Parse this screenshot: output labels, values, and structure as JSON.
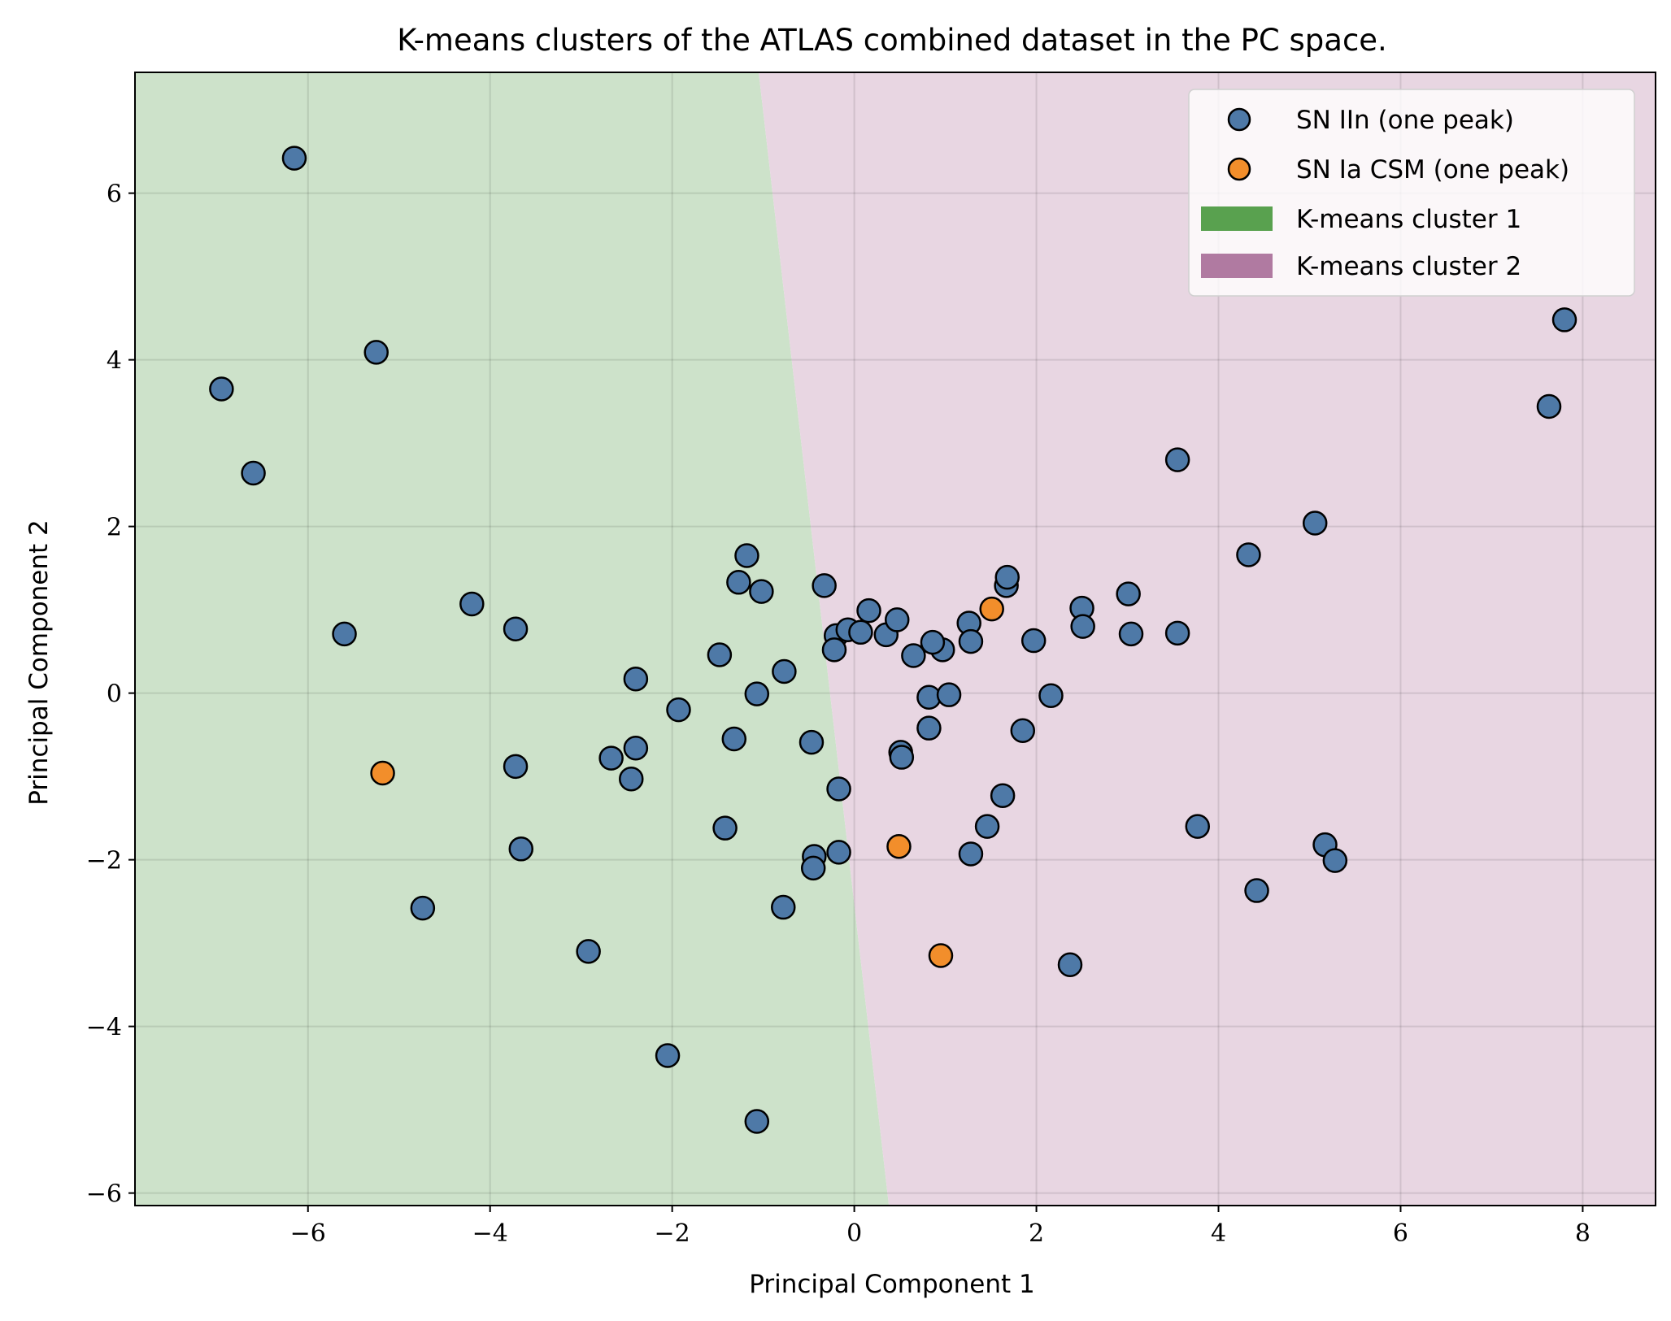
{
  "chart_data": {
    "type": "scatter",
    "title": "K-means clusters of the ATLAS combined dataset in the PC space.",
    "xlabel": "Principal Component 1",
    "ylabel": "Principal Component 2",
    "xlim": [
      -7.9,
      8.8
    ],
    "ylim": [
      -6.15,
      7.45
    ],
    "xticks": [
      -6,
      -4,
      -2,
      0,
      2,
      4,
      6,
      8
    ],
    "yticks": [
      -6,
      -4,
      -2,
      0,
      2,
      4,
      6
    ],
    "xtick_labels": [
      "−6",
      "−4",
      "−2",
      "0",
      "2",
      "4",
      "6",
      "8"
    ],
    "ytick_labels": [
      "−6",
      "−4",
      "−2",
      "0",
      "2",
      "4",
      "6"
    ],
    "grid": true,
    "legend_position": "top-right",
    "regions": [
      {
        "name": "K-means cluster 1",
        "color": "#59a14f",
        "fill": "#cde2ca"
      },
      {
        "name": "K-means cluster 2",
        "color": "#b07aa1",
        "fill": "#e8d6e2"
      }
    ],
    "boundary": {
      "x_at_top": -1.05,
      "x_at_bottom": 0.38
    },
    "series": [
      {
        "name": "SN IIn (one peak)",
        "color": "#4e79a7",
        "points": [
          [
            -6.15,
            6.42
          ],
          [
            -5.25,
            4.09
          ],
          [
            -6.95,
            3.65
          ],
          [
            -6.6,
            2.64
          ],
          [
            -5.6,
            0.71
          ],
          [
            -4.2,
            1.07
          ],
          [
            -3.72,
            0.77
          ],
          [
            -3.72,
            -0.88
          ],
          [
            -3.66,
            -1.87
          ],
          [
            -4.74,
            -2.58
          ],
          [
            -2.92,
            -3.1
          ],
          [
            -2.05,
            -4.35
          ],
          [
            -1.07,
            -5.14
          ],
          [
            -2.4,
            0.17
          ],
          [
            -1.93,
            -0.2
          ],
          [
            -2.4,
            -0.66
          ],
          [
            -2.67,
            -0.78
          ],
          [
            -2.45,
            -1.03
          ],
          [
            -1.48,
            0.46
          ],
          [
            -1.32,
            -0.55
          ],
          [
            -1.42,
            -1.62
          ],
          [
            -1.27,
            1.33
          ],
          [
            -1.18,
            1.65
          ],
          [
            -1.02,
            1.22
          ],
          [
            -1.07,
            -0.01
          ],
          [
            -0.77,
            0.26
          ],
          [
            -0.47,
            -0.59
          ],
          [
            -0.78,
            -2.57
          ],
          [
            -0.44,
            -1.96
          ],
          [
            -0.45,
            -2.1
          ],
          [
            -0.17,
            -1.91
          ],
          [
            -0.17,
            -1.15
          ],
          [
            -0.33,
            1.29
          ],
          [
            -0.2,
            0.69
          ],
          [
            -0.22,
            0.52
          ],
          [
            -0.07,
            0.76
          ],
          [
            0.07,
            0.73
          ],
          [
            0.16,
            0.99
          ],
          [
            0.35,
            0.7
          ],
          [
            0.47,
            0.88
          ],
          [
            0.65,
            0.45
          ],
          [
            0.97,
            0.52
          ],
          [
            0.86,
            0.61
          ],
          [
            0.82,
            -0.05
          ],
          [
            1.04,
            -0.02
          ],
          [
            0.82,
            -0.42
          ],
          [
            0.51,
            -0.71
          ],
          [
            0.52,
            -0.77
          ],
          [
            1.26,
            0.84
          ],
          [
            1.28,
            0.62
          ],
          [
            1.67,
            1.29
          ],
          [
            1.68,
            1.39
          ],
          [
            1.97,
            0.63
          ],
          [
            2.16,
            -0.03
          ],
          [
            1.85,
            -0.45
          ],
          [
            1.63,
            -1.23
          ],
          [
            1.46,
            -1.6
          ],
          [
            1.28,
            -1.93
          ],
          [
            2.37,
            -3.26
          ],
          [
            2.5,
            1.02
          ],
          [
            2.51,
            0.8
          ],
          [
            3.01,
            1.19
          ],
          [
            3.04,
            0.71
          ],
          [
            3.55,
            2.8
          ],
          [
            3.55,
            0.72
          ],
          [
            3.77,
            -1.6
          ],
          [
            4.33,
            1.66
          ],
          [
            4.42,
            -2.37
          ],
          [
            5.06,
            2.04
          ],
          [
            5.17,
            -1.82
          ],
          [
            5.28,
            -2.01
          ],
          [
            7.63,
            3.44
          ],
          [
            7.8,
            4.48
          ]
        ]
      },
      {
        "name": "SN Ia CSM (one peak)",
        "color": "#f28e2b",
        "points": [
          [
            -5.18,
            -0.96
          ],
          [
            1.51,
            1.01
          ],
          [
            0.49,
            -1.84
          ],
          [
            0.95,
            -3.15
          ]
        ]
      }
    ]
  }
}
